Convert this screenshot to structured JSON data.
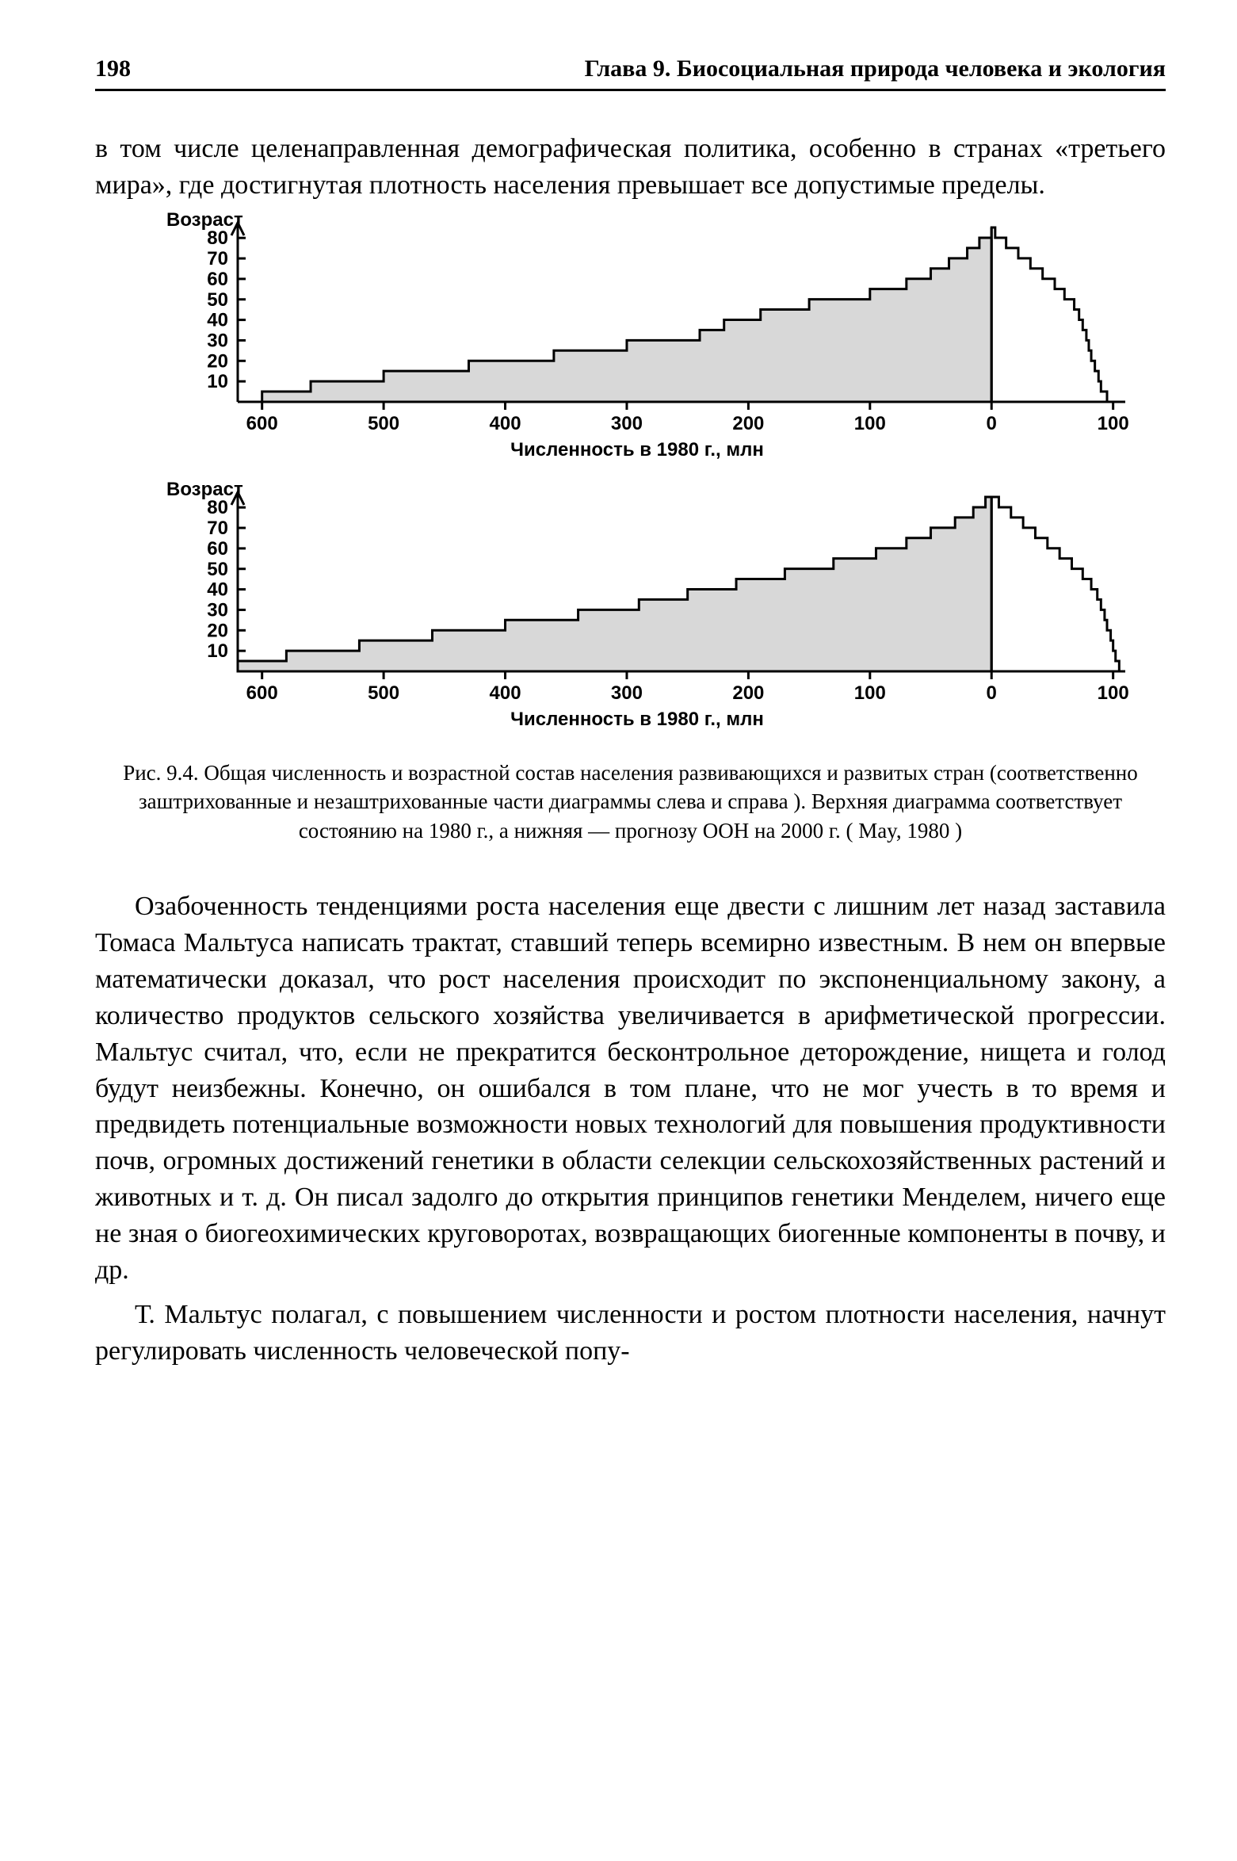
{
  "header": {
    "page_number": "198",
    "chapter": "Глава 9. Биосоциальная природа человека и экология"
  },
  "para1": "в том числе целенаправленная демографическая политика, особенно в странах «третьего мира», где достигнутая плотность населения превышает все допустимые пределы.",
  "caption": "Рис. 9.4. Общая численность и возрастной состав населения развивающихся и развитых стран (соответственно заштрихованные и незаштрихованные части диаграммы слева и справа ). Верхняя диаграмма соответствует состоянию на 1980 г., а нижняя — прогнозу ООН на 2000 г. ( May, 1980 )",
  "para2": "Озабоченность тенденциями роста населения еще двести с лишним лет назад заставила Томаса Мальтуса написать трактат, ставший теперь всемирно известным. В нем он впервые математически доказал, что рост населения происходит по экспоненциальному закону, а количество продуктов сельского хозяйства увеличивается в арифметической прогрессии. Мальтус считал, что, если не прекратится бесконтрольное деторождение, нищета и голод будут неизбежны. Конечно, он ошибался в том плане, что не мог учесть в то время и предвидеть потенциальные возможности новых технологий для повышения продуктивности почв, огромных достижений генетики в области селекции сельскохозяйственных растений и животных и т. д. Он писал задолго до открытия принципов генетики Менделем, ничего еще не зная о биогеохимических круговоротах, возвращающих биогенные компоненты в почву, и др.",
  "para3": "Т. Мальтус полагал, с повышением численности и ростом плотности населения, начнут регулировать численность человеческой попу-",
  "chart": {
    "y_label": "Возраст",
    "x_label": "Численность в 1980 г., млн",
    "y_ticks": [
      10,
      20,
      30,
      40,
      50,
      60,
      70,
      80
    ],
    "x_ticks_left": [
      600,
      500,
      400,
      300,
      200,
      100,
      0
    ],
    "x_tick_right": 100,
    "stroke": "#000000",
    "fill_hatched": "#d8d8d8",
    "fill_open": "#ffffff",
    "bg": "#ffffff",
    "tick_font": "Arial",
    "tick_fontsize": 24,
    "tick_fontweight": "bold",
    "line_width": 3,
    "top_chart": {
      "type": "step-area-pyramid",
      "left_bars": [
        600,
        560,
        500,
        430,
        360,
        300,
        240,
        220,
        190,
        150,
        100,
        70,
        50,
        35,
        20,
        10,
        0
      ],
      "right_bars": [
        95,
        90,
        88,
        85,
        82,
        80,
        78,
        75,
        72,
        68,
        60,
        52,
        42,
        32,
        22,
        12,
        3
      ]
    },
    "bottom_chart": {
      "type": "step-area-pyramid",
      "left_bars": [
        620,
        580,
        520,
        460,
        400,
        340,
        290,
        250,
        210,
        170,
        130,
        95,
        70,
        50,
        30,
        15,
        5
      ],
      "right_bars": [
        105,
        102,
        100,
        98,
        95,
        93,
        90,
        87,
        82,
        75,
        66,
        56,
        46,
        36,
        26,
        16,
        6
      ]
    }
  }
}
